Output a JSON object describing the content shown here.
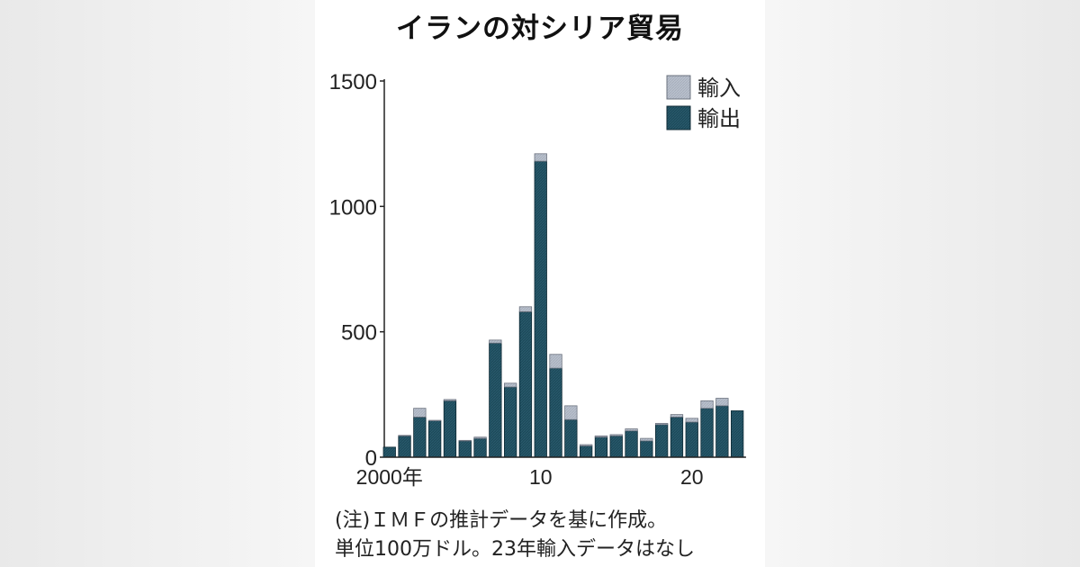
{
  "title": "イランの対シリア貿易",
  "notes": [
    "(注)ＩＭＦの推計データを基に作成。",
    "単位100万ドル。23年輸入データはなし"
  ],
  "chart_data": {
    "type": "bar",
    "stacked": true,
    "years": [
      2000,
      2001,
      2002,
      2003,
      2004,
      2005,
      2006,
      2007,
      2008,
      2009,
      2010,
      2011,
      2012,
      2013,
      2014,
      2015,
      2016,
      2017,
      2018,
      2019,
      2020,
      2021,
      2022,
      2023
    ],
    "series": [
      {
        "name": "輸出",
        "color": "#1d4a5b",
        "values": [
          40,
          85,
          160,
          145,
          225,
          65,
          75,
          455,
          280,
          580,
          1180,
          355,
          150,
          45,
          80,
          85,
          105,
          65,
          130,
          160,
          140,
          195,
          205,
          185
        ]
      },
      {
        "name": "輸入",
        "color": "#b9c0cc",
        "values": [
          0,
          2,
          35,
          2,
          5,
          2,
          5,
          12,
          15,
          20,
          30,
          55,
          55,
          5,
          5,
          5,
          8,
          10,
          5,
          10,
          15,
          30,
          30,
          0
        ]
      }
    ],
    "ylim": [
      0,
      1500
    ],
    "yticks": [
      0,
      500,
      1000,
      1500
    ],
    "xtick_labels": [
      {
        "index": 0,
        "label": "2000年"
      },
      {
        "index": 10,
        "label": "10"
      },
      {
        "index": 20,
        "label": "20"
      }
    ],
    "legend": {
      "position": "top-right",
      "entries": [
        "輸入",
        "輸出"
      ]
    },
    "grid": false
  }
}
